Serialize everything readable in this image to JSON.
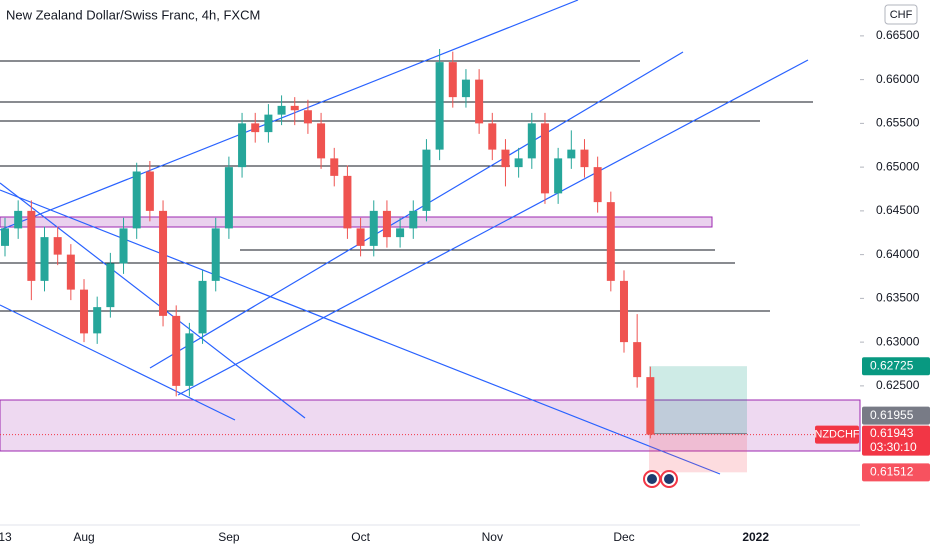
{
  "chart_data": {
    "type": "candlestick",
    "title": "New Zealand Dollar/Swiss Franc, 4h, FXCM",
    "currency": "CHF",
    "categories": [
      "13",
      null,
      null,
      null,
      null,
      null,
      "Aug",
      null,
      null,
      null,
      null,
      null,
      null,
      null,
      null,
      null,
      null,
      "Sep",
      null,
      null,
      null,
      null,
      null,
      null,
      null,
      null,
      null,
      "Oct",
      null,
      null,
      null,
      null,
      null,
      null,
      null,
      null,
      null,
      "Nov",
      null,
      null,
      null,
      null,
      null,
      null,
      null,
      null,
      null,
      "Dec",
      null,
      null,
      null,
      null,
      null,
      null,
      null,
      null,
      null,
      "2022",
      null,
      null,
      null,
      null,
      null,
      null,
      null,
      null
    ],
    "open": [
      0.641,
      0.643,
      0.645,
      0.637,
      0.642,
      0.64,
      0.636,
      0.631,
      0.634,
      0.639,
      0.643,
      0.6495,
      0.645,
      0.633,
      0.625,
      0.631,
      0.637,
      0.643,
      0.65,
      0.655,
      0.654,
      0.656,
      0.657,
      0.6565,
      0.655,
      0.651,
      0.649,
      0.643,
      0.641,
      0.645,
      0.642,
      0.643,
      0.645,
      0.652,
      0.662,
      0.658,
      0.66,
      0.655,
      0.652,
      0.65,
      0.651,
      0.655,
      0.647,
      0.651,
      0.652,
      0.65,
      0.646,
      0.637,
      0.63,
      0.626,
      null,
      null,
      null,
      null,
      null,
      null,
      null,
      null,
      null,
      null,
      null,
      null,
      null,
      null,
      null,
      null
    ],
    "high": [
      0.6442,
      0.6462,
      0.6462,
      0.6432,
      0.6432,
      0.6412,
      0.6372,
      0.6352,
      0.6402,
      0.6442,
      0.6505,
      0.6507,
      0.6462,
      0.6342,
      0.6322,
      0.6382,
      0.6442,
      0.6512,
      0.6562,
      0.6562,
      0.6572,
      0.6582,
      0.658,
      0.6577,
      0.6562,
      0.6522,
      0.6502,
      0.6442,
      0.6462,
      0.6462,
      0.6442,
      0.6462,
      0.6532,
      0.6635,
      0.6632,
      0.6612,
      0.6612,
      0.6562,
      0.6532,
      0.6522,
      0.6562,
      0.6562,
      0.6522,
      0.6542,
      0.6532,
      0.6512,
      0.6472,
      0.6382,
      0.6332,
      0.6272,
      null,
      null,
      null,
      null,
      null,
      null,
      null,
      null,
      null,
      null,
      null,
      null,
      null,
      null,
      null,
      null
    ],
    "low": [
      0.6398,
      0.6418,
      0.6348,
      0.6358,
      0.6388,
      0.6348,
      0.63,
      0.6298,
      0.6328,
      0.6378,
      0.6418,
      0.6438,
      0.6318,
      0.6238,
      0.6238,
      0.6298,
      0.6358,
      0.6418,
      0.6488,
      0.6528,
      0.6528,
      0.6548,
      0.6548,
      0.6538,
      0.6498,
      0.6478,
      0.6418,
      0.6398,
      0.6398,
      0.6408,
      0.6408,
      0.6418,
      0.6438,
      0.6508,
      0.6568,
      0.6568,
      0.6538,
      0.6508,
      0.6478,
      0.6488,
      0.6498,
      0.6458,
      0.6458,
      0.6498,
      0.6488,
      0.6448,
      0.6358,
      0.6288,
      0.6248,
      0.619,
      null,
      null,
      null,
      null,
      null,
      null,
      null,
      null,
      null,
      null,
      null,
      null,
      null,
      null,
      null,
      null
    ],
    "close": [
      0.643,
      0.645,
      0.637,
      0.642,
      0.64,
      0.636,
      0.631,
      0.634,
      0.639,
      0.643,
      0.6495,
      0.645,
      0.633,
      0.625,
      0.631,
      0.637,
      0.643,
      0.65,
      0.655,
      0.654,
      0.656,
      0.657,
      0.6565,
      0.655,
      0.651,
      0.649,
      0.643,
      0.641,
      0.645,
      0.642,
      0.643,
      0.645,
      0.652,
      0.662,
      0.658,
      0.66,
      0.655,
      0.652,
      0.65,
      0.651,
      0.655,
      0.647,
      0.651,
      0.652,
      0.65,
      0.646,
      0.637,
      0.63,
      0.626,
      0.61943,
      null,
      null,
      null,
      null,
      null,
      null,
      null,
      null,
      null,
      null,
      null,
      null,
      null,
      null,
      null,
      null
    ],
    "up_color": "#26a69a",
    "down_color": "#ef5350",
    "ylim": [
      0.6091,
      0.6691
    ],
    "yticks": [
      {
        "value": 0.625,
        "label": "0.62500"
      },
      {
        "value": 0.63,
        "label": "0.63000"
      },
      {
        "value": 0.635,
        "label": "0.63500"
      },
      {
        "value": 0.64,
        "label": "0.64000"
      },
      {
        "value": 0.645,
        "label": "0.64500"
      },
      {
        "value": 0.65,
        "label": "0.65000"
      },
      {
        "value": 0.655,
        "label": "0.65500"
      },
      {
        "value": 0.66,
        "label": "0.66000"
      },
      {
        "value": 0.665,
        "label": "0.66500"
      }
    ],
    "last_price": {
      "symbol": "NZDCHF",
      "value": 0.61943,
      "countdown": "03:30:10",
      "color": "#f23645"
    },
    "position": {
      "entry": 0.61955,
      "target": 0.62725,
      "stop": 0.61512,
      "entry_color": "#787b86",
      "target_color": "#089981",
      "stop_color": "#f7525f"
    }
  }
}
